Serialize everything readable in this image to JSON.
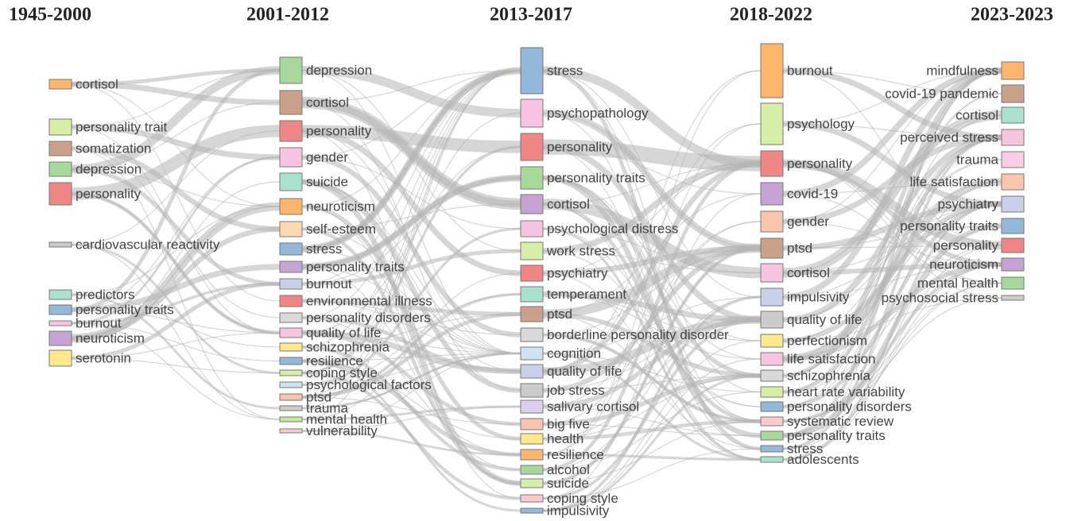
{
  "columns": [
    {
      "title": "1945-2000",
      "nodes": [
        {
          "label": "cortisol",
          "color": "#fdb46c"
        },
        {
          "label": "personality trait",
          "color": "#d7eea6"
        },
        {
          "label": "somatization",
          "color": "#c9a08a"
        },
        {
          "label": "depression",
          "color": "#a5d89a"
        },
        {
          "label": "personality",
          "color": "#f08585"
        },
        {
          "label": "cardiovascular reactivity",
          "color": "#cccccc"
        },
        {
          "label": "predictors",
          "color": "#a9e0cf"
        },
        {
          "label": "personality traits",
          "color": "#94b8da"
        },
        {
          "label": "burnout",
          "color": "#f7c4e0"
        },
        {
          "label": "neuroticism",
          "color": "#c6a3d5"
        },
        {
          "label": "serotonin",
          "color": "#fde98c"
        }
      ]
    },
    {
      "title": "2001-2012",
      "nodes": [
        {
          "label": "depression",
          "color": "#a5d89a"
        },
        {
          "label": "cortisol",
          "color": "#c9a08a"
        },
        {
          "label": "personality",
          "color": "#f08585"
        },
        {
          "label": "gender",
          "color": "#f7c4e0"
        },
        {
          "label": "suicide",
          "color": "#a9e0cf"
        },
        {
          "label": "neuroticism",
          "color": "#fdb46c"
        },
        {
          "label": "self-esteem",
          "color": "#fdd9b0"
        },
        {
          "label": "stress",
          "color": "#94b8da"
        },
        {
          "label": "personality traits",
          "color": "#c6a3d5"
        },
        {
          "label": "burnout",
          "color": "#c8cfe8"
        },
        {
          "label": "environmental illness",
          "color": "#f08585"
        },
        {
          "label": "personality disorders",
          "color": "#d9d9d9"
        },
        {
          "label": "quality of life",
          "color": "#f7c4e0"
        },
        {
          "label": "schizophrenia",
          "color": "#fde98c"
        },
        {
          "label": "resilience",
          "color": "#94b8da"
        },
        {
          "label": "coping style",
          "color": "#d7eea6"
        },
        {
          "label": "psychological factors",
          "color": "#cde3f2"
        },
        {
          "label": "ptsd",
          "color": "#fac5ae"
        },
        {
          "label": "trauma",
          "color": "#cccccc"
        },
        {
          "label": "mental health",
          "color": "#c5e59a"
        },
        {
          "label": "vulnerability",
          "color": "#fbc8cc"
        }
      ]
    },
    {
      "title": "2013-2017",
      "nodes": [
        {
          "label": "stress",
          "color": "#94b8da"
        },
        {
          "label": "psychopathology",
          "color": "#f7c4e0"
        },
        {
          "label": "personality",
          "color": "#f08585"
        },
        {
          "label": "personality traits",
          "color": "#a5d89a"
        },
        {
          "label": "cortisol",
          "color": "#c6a3d5"
        },
        {
          "label": "psychological distress",
          "color": "#f7c4e0"
        },
        {
          "label": "work stress",
          "color": "#d7eea6"
        },
        {
          "label": "psychiatry",
          "color": "#f08585"
        },
        {
          "label": "temperament",
          "color": "#a9e0cf"
        },
        {
          "label": "ptsd",
          "color": "#c9a08a"
        },
        {
          "label": "borderline personality disorder",
          "color": "#d9d9d9"
        },
        {
          "label": "cognition",
          "color": "#cde3f2"
        },
        {
          "label": "quality of life",
          "color": "#c8cfe8"
        },
        {
          "label": "job stress",
          "color": "#cccccc"
        },
        {
          "label": "salivary cortisol",
          "color": "#ddd0ec"
        },
        {
          "label": "big five",
          "color": "#fac5ae"
        },
        {
          "label": "health",
          "color": "#fde98c"
        },
        {
          "label": "resilience",
          "color": "#fdb46c"
        },
        {
          "label": "alcohol",
          "color": "#a5d89a"
        },
        {
          "label": "suicide",
          "color": "#d7eea6"
        },
        {
          "label": "coping style",
          "color": "#fbc8cc"
        },
        {
          "label": "impulsivity",
          "color": "#94b8da"
        }
      ]
    },
    {
      "title": "2018-2022",
      "nodes": [
        {
          "label": "burnout",
          "color": "#fdb46c"
        },
        {
          "label": "psychology",
          "color": "#d7eea6"
        },
        {
          "label": "personality",
          "color": "#f08585"
        },
        {
          "label": "covid-19",
          "color": "#c6a3d5"
        },
        {
          "label": "gender",
          "color": "#fac5ae"
        },
        {
          "label": "ptsd",
          "color": "#c9a08a"
        },
        {
          "label": "cortisol",
          "color": "#f7c4e0"
        },
        {
          "label": "impulsivity",
          "color": "#c8cfe8"
        },
        {
          "label": "quality of life",
          "color": "#cccccc"
        },
        {
          "label": "perfectionism",
          "color": "#fde98c"
        },
        {
          "label": "life satisfaction",
          "color": "#f7c4e0"
        },
        {
          "label": "schizophrenia",
          "color": "#d9d9d9"
        },
        {
          "label": "heart rate variability",
          "color": "#d7eea6"
        },
        {
          "label": "personality disorders",
          "color": "#94b8da"
        },
        {
          "label": "systematic review",
          "color": "#fbc8cc"
        },
        {
          "label": "personality traits",
          "color": "#a5d89a"
        },
        {
          "label": "stress",
          "color": "#94b8da"
        },
        {
          "label": "adolescents",
          "color": "#a9e0cf"
        }
      ]
    },
    {
      "title": "2023-2023",
      "nodes": [
        {
          "label": "mindfulness",
          "color": "#fdb46c"
        },
        {
          "label": "covid-19 pandemic",
          "color": "#c9a08a"
        },
        {
          "label": "cortisol",
          "color": "#a9e0cf"
        },
        {
          "label": "perceived stress",
          "color": "#f7c4e0"
        },
        {
          "label": "trauma",
          "color": "#f9cde6"
        },
        {
          "label": "life satisfaction",
          "color": "#fac5ae"
        },
        {
          "label": "psychiatry",
          "color": "#c8cfe8"
        },
        {
          "label": "personality traits",
          "color": "#94b8da"
        },
        {
          "label": "personality",
          "color": "#f08585"
        },
        {
          "label": "neuroticism",
          "color": "#c6a3d5"
        },
        {
          "label": "mental health",
          "color": "#a5d89a"
        },
        {
          "label": "psychosocial stress",
          "color": "#cccccc"
        }
      ]
    }
  ]
}
